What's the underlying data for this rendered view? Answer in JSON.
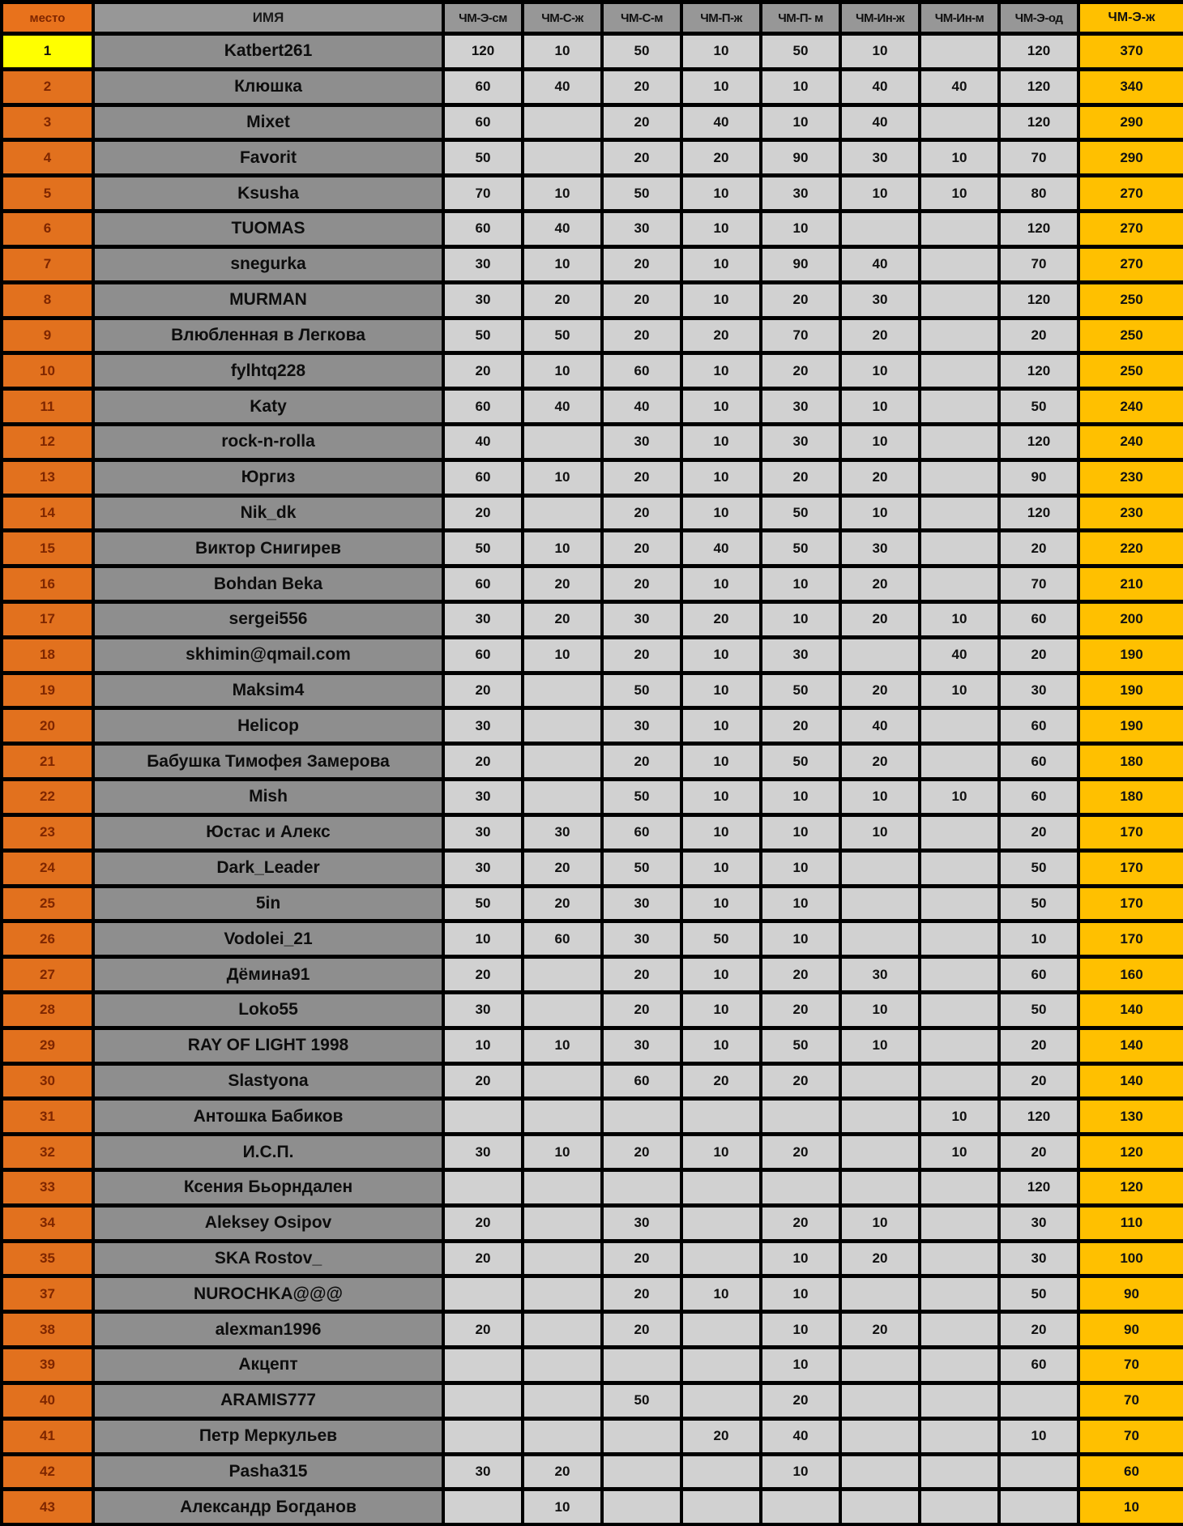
{
  "table": {
    "columns": [
      {
        "key": "rank",
        "label": "место"
      },
      {
        "key": "name",
        "label": "ИМЯ"
      },
      {
        "key": "c1",
        "label": "ЧМ-Э-см"
      },
      {
        "key": "c2",
        "label": "ЧМ-С-ж"
      },
      {
        "key": "c3",
        "label": "ЧМ-С-м"
      },
      {
        "key": "c4",
        "label": "ЧМ-П-ж"
      },
      {
        "key": "c5",
        "label": "ЧМ-П- м"
      },
      {
        "key": "c6",
        "label": "ЧМ-Ин-ж"
      },
      {
        "key": "c7",
        "label": "ЧМ-Ин-м"
      },
      {
        "key": "c8",
        "label": "ЧМ-Э-од"
      },
      {
        "key": "total",
        "label": "ЧМ-Э-ж"
      }
    ],
    "rows": [
      {
        "rank": "1",
        "name": "Katbert261",
        "values": [
          "120",
          "10",
          "50",
          "10",
          "50",
          "10",
          "",
          "120"
        ],
        "total": "370",
        "rank_highlight": true
      },
      {
        "rank": "2",
        "name": "Клюшка",
        "values": [
          "60",
          "40",
          "20",
          "10",
          "10",
          "40",
          "40",
          "120"
        ],
        "total": "340",
        "rank_highlight": false
      },
      {
        "rank": "3",
        "name": "Mixet",
        "values": [
          "60",
          "",
          "20",
          "40",
          "10",
          "40",
          "",
          "120"
        ],
        "total": "290",
        "rank_highlight": false
      },
      {
        "rank": "4",
        "name": "Favorit",
        "values": [
          "50",
          "",
          "20",
          "20",
          "90",
          "30",
          "10",
          "70"
        ],
        "total": "290",
        "rank_highlight": false
      },
      {
        "rank": "5",
        "name": "Ksusha",
        "values": [
          "70",
          "10",
          "50",
          "10",
          "30",
          "10",
          "10",
          "80"
        ],
        "total": "270",
        "rank_highlight": false
      },
      {
        "rank": "6",
        "name": "TUOMAS",
        "values": [
          "60",
          "40",
          "30",
          "10",
          "10",
          "",
          "",
          "120"
        ],
        "total": "270",
        "rank_highlight": false
      },
      {
        "rank": "7",
        "name": "snegurka",
        "values": [
          "30",
          "10",
          "20",
          "10",
          "90",
          "40",
          "",
          "70"
        ],
        "total": "270",
        "rank_highlight": false
      },
      {
        "rank": "8",
        "name": "MURMAN",
        "values": [
          "30",
          "20",
          "20",
          "10",
          "20",
          "30",
          "",
          "120"
        ],
        "total": "250",
        "rank_highlight": false
      },
      {
        "rank": "9",
        "name": "Влюбленная в Легкова",
        "values": [
          "50",
          "50",
          "20",
          "20",
          "70",
          "20",
          "",
          "20"
        ],
        "total": "250",
        "rank_highlight": false
      },
      {
        "rank": "10",
        "name": "fylhtq228",
        "values": [
          "20",
          "10",
          "60",
          "10",
          "20",
          "10",
          "",
          "120"
        ],
        "total": "250",
        "rank_highlight": false
      },
      {
        "rank": "11",
        "name": "Katy",
        "values": [
          "60",
          "40",
          "40",
          "10",
          "30",
          "10",
          "",
          "50"
        ],
        "total": "240",
        "rank_highlight": false
      },
      {
        "rank": "12",
        "name": "rock-n-rolla",
        "values": [
          "40",
          "",
          "30",
          "10",
          "30",
          "10",
          "",
          "120"
        ],
        "total": "240",
        "rank_highlight": false
      },
      {
        "rank": "13",
        "name": "Юргиз",
        "values": [
          "60",
          "10",
          "20",
          "10",
          "20",
          "20",
          "",
          "90"
        ],
        "total": "230",
        "rank_highlight": false
      },
      {
        "rank": "14",
        "name": "Nik_dk",
        "values": [
          "20",
          "",
          "20",
          "10",
          "50",
          "10",
          "",
          "120"
        ],
        "total": "230",
        "rank_highlight": false
      },
      {
        "rank": "15",
        "name": "Виктор Снигирев",
        "values": [
          "50",
          "10",
          "20",
          "40",
          "50",
          "30",
          "",
          "20"
        ],
        "total": "220",
        "rank_highlight": false
      },
      {
        "rank": "16",
        "name": "Bohdan Beka",
        "values": [
          "60",
          "20",
          "20",
          "10",
          "10",
          "20",
          "",
          "70"
        ],
        "total": "210",
        "rank_highlight": false
      },
      {
        "rank": "17",
        "name": "sergei556",
        "values": [
          "30",
          "20",
          "30",
          "20",
          "10",
          "20",
          "10",
          "60"
        ],
        "total": "200",
        "rank_highlight": false
      },
      {
        "rank": "18",
        "name": "skhimin@qmail.com",
        "values": [
          "60",
          "10",
          "20",
          "10",
          "30",
          "",
          "40",
          "20"
        ],
        "total": "190",
        "rank_highlight": false
      },
      {
        "rank": "19",
        "name": "Maksim4",
        "values": [
          "20",
          "",
          "50",
          "10",
          "50",
          "20",
          "10",
          "30"
        ],
        "total": "190",
        "rank_highlight": false
      },
      {
        "rank": "20",
        "name": "Helicop",
        "values": [
          "30",
          "",
          "30",
          "10",
          "20",
          "40",
          "",
          "60"
        ],
        "total": "190",
        "rank_highlight": false
      },
      {
        "rank": "21",
        "name": "Бабушка Тимофея Замерова",
        "values": [
          "20",
          "",
          "20",
          "10",
          "50",
          "20",
          "",
          "60"
        ],
        "total": "180",
        "rank_highlight": false
      },
      {
        "rank": "22",
        "name": "Mish",
        "values": [
          "30",
          "",
          "50",
          "10",
          "10",
          "10",
          "10",
          "60"
        ],
        "total": "180",
        "rank_highlight": false
      },
      {
        "rank": "23",
        "name": "Юстас и Алекс",
        "values": [
          "30",
          "30",
          "60",
          "10",
          "10",
          "10",
          "",
          "20"
        ],
        "total": "170",
        "rank_highlight": false
      },
      {
        "rank": "24",
        "name": "Dark_Leader",
        "values": [
          "30",
          "20",
          "50",
          "10",
          "10",
          "",
          "",
          "50"
        ],
        "total": "170",
        "rank_highlight": false
      },
      {
        "rank": "25",
        "name": "5in",
        "values": [
          "50",
          "20",
          "30",
          "10",
          "10",
          "",
          "",
          "50"
        ],
        "total": "170",
        "rank_highlight": false
      },
      {
        "rank": "26",
        "name": "Vodolei_21",
        "values": [
          "10",
          "60",
          "30",
          "50",
          "10",
          "",
          "",
          "10"
        ],
        "total": "170",
        "rank_highlight": false
      },
      {
        "rank": "27",
        "name": "Дёмина91",
        "values": [
          "20",
          "",
          "20",
          "10",
          "20",
          "30",
          "",
          "60"
        ],
        "total": "160",
        "rank_highlight": false
      },
      {
        "rank": "28",
        "name": "Loko55",
        "values": [
          "30",
          "",
          "20",
          "10",
          "20",
          "10",
          "",
          "50"
        ],
        "total": "140",
        "rank_highlight": false
      },
      {
        "rank": "29",
        "name": "RAY OF LIGHT 1998",
        "values": [
          "10",
          "10",
          "30",
          "10",
          "50",
          "10",
          "",
          "20"
        ],
        "total": "140",
        "rank_highlight": false
      },
      {
        "rank": "30",
        "name": "Slastyona",
        "values": [
          "20",
          "",
          "60",
          "20",
          "20",
          "",
          "",
          "20"
        ],
        "total": "140",
        "rank_highlight": false
      },
      {
        "rank": "31",
        "name": "Антошка Бабиков",
        "values": [
          "",
          "",
          "",
          "",
          "",
          "",
          "10",
          "120"
        ],
        "total": "130",
        "rank_highlight": false
      },
      {
        "rank": "32",
        "name": "И.С.П.",
        "values": [
          "30",
          "10",
          "20",
          "10",
          "20",
          "",
          "10",
          "20"
        ],
        "total": "120",
        "rank_highlight": false
      },
      {
        "rank": "33",
        "name": "Ксения Бьорндален",
        "values": [
          "",
          "",
          "",
          "",
          "",
          "",
          "",
          "120"
        ],
        "total": "120",
        "rank_highlight": false
      },
      {
        "rank": "34",
        "name": "Aleksey Osipov",
        "values": [
          "20",
          "",
          "30",
          "",
          "20",
          "10",
          "",
          "30"
        ],
        "total": "110",
        "rank_highlight": false
      },
      {
        "rank": "35",
        "name": "SKA Rostov_",
        "values": [
          "20",
          "",
          "20",
          "",
          "10",
          "20",
          "",
          "30"
        ],
        "total": "100",
        "rank_highlight": false
      },
      {
        "rank": "37",
        "name": "NUROCHKA@@@",
        "values": [
          "",
          "",
          "20",
          "10",
          "10",
          "",
          "",
          "50"
        ],
        "total": "90",
        "rank_highlight": false
      },
      {
        "rank": "38",
        "name": "alexman1996",
        "values": [
          "20",
          "",
          "20",
          "",
          "10",
          "20",
          "",
          "20"
        ],
        "total": "90",
        "rank_highlight": false
      },
      {
        "rank": "39",
        "name": "Акцепт",
        "values": [
          "",
          "",
          "",
          "",
          "10",
          "",
          "",
          "60"
        ],
        "total": "70",
        "rank_highlight": false
      },
      {
        "rank": "40",
        "name": "ARAMIS777",
        "values": [
          "",
          "",
          "50",
          "",
          "20",
          "",
          "",
          ""
        ],
        "total": "70",
        "rank_highlight": false
      },
      {
        "rank": "41",
        "name": "Петр Меркульев",
        "values": [
          "",
          "",
          "",
          "20",
          "40",
          "",
          "",
          "10"
        ],
        "total": "70",
        "rank_highlight": false
      },
      {
        "rank": "42",
        "name": "Pasha315",
        "values": [
          "30",
          "20",
          "",
          "",
          "10",
          "",
          "",
          ""
        ],
        "total": "60",
        "rank_highlight": false
      },
      {
        "rank": "43",
        "name": "Александр Богданов",
        "values": [
          "",
          "10",
          "",
          "",
          "",
          "",
          "",
          ""
        ],
        "total": "10",
        "rank_highlight": false
      }
    ]
  },
  "colors": {
    "rank_header_bg": "#E8721C",
    "rank_header_text": "#7E2600",
    "rank_cell_bg": "#E2711E",
    "rank_first_bg": "#FFFF00",
    "header_gray_bg": "#979797",
    "name_cell_bg": "#8E8E8E",
    "score_cell_bg": "#D1D1D1",
    "total_col_bg": "#FFC000",
    "grid_border": "#000000"
  }
}
